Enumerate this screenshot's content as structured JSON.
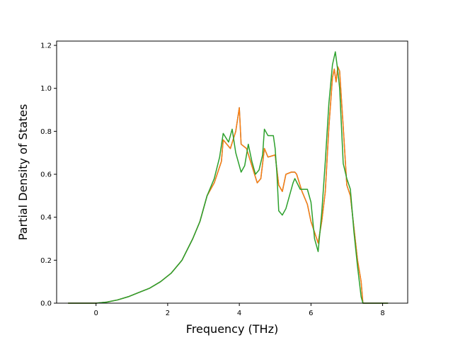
{
  "chart_data": {
    "type": "line",
    "title": "",
    "xlabel": "Frequency (THz)",
    "ylabel": "Partial Density of States",
    "xlim": [
      -1.1,
      8.7
    ],
    "ylim": [
      0.0,
      1.22
    ],
    "xticks": [
      0,
      2,
      4,
      6,
      8
    ],
    "yticks": [
      0.0,
      0.2,
      0.4,
      0.6,
      0.8,
      1.0,
      1.2
    ],
    "xtick_labels": [
      "0",
      "2",
      "4",
      "6",
      "8"
    ],
    "ytick_labels": [
      "0.0",
      "0.2",
      "0.4",
      "0.6",
      "0.8",
      "1.0",
      "1.2"
    ],
    "grid": false,
    "legend": "none",
    "series": [
      {
        "color": "#1f77b4",
        "x": [
          -0.78,
          0.0,
          0.3,
          0.6,
          0.9,
          1.2,
          1.5,
          1.8,
          2.1,
          2.4,
          2.7,
          2.9,
          3.1,
          3.3,
          3.5,
          3.55,
          3.65,
          3.75,
          3.9,
          4.0,
          4.05,
          4.2,
          4.35,
          4.5,
          4.6,
          4.7,
          4.8,
          5.0,
          5.1,
          5.2,
          5.3,
          5.45,
          5.55,
          5.6,
          5.75,
          5.9,
          6.0,
          6.1,
          6.2,
          6.3,
          6.4,
          6.5,
          6.6,
          6.65,
          6.7,
          6.75,
          6.8,
          6.9,
          7.0,
          7.1,
          7.2,
          7.3,
          7.4,
          7.45,
          7.6,
          8.15
        ],
        "y": [
          0.0,
          0.0,
          0.005,
          0.015,
          0.03,
          0.05,
          0.07,
          0.1,
          0.14,
          0.2,
          0.3,
          0.38,
          0.5,
          0.56,
          0.66,
          0.76,
          0.74,
          0.72,
          0.8,
          0.91,
          0.74,
          0.72,
          0.64,
          0.56,
          0.58,
          0.72,
          0.68,
          0.69,
          0.55,
          0.52,
          0.6,
          0.61,
          0.61,
          0.6,
          0.52,
          0.46,
          0.38,
          0.33,
          0.28,
          0.38,
          0.52,
          0.82,
          1.05,
          1.09,
          1.03,
          1.1,
          1.08,
          0.82,
          0.55,
          0.5,
          0.35,
          0.2,
          0.1,
          0.0,
          0.0,
          0.0
        ]
      },
      {
        "color": "#ff7f0e",
        "x": [
          -0.78,
          0.0,
          0.3,
          0.6,
          0.9,
          1.2,
          1.5,
          1.8,
          2.1,
          2.4,
          2.7,
          2.9,
          3.1,
          3.3,
          3.5,
          3.55,
          3.65,
          3.75,
          3.9,
          4.0,
          4.05,
          4.2,
          4.35,
          4.5,
          4.6,
          4.7,
          4.8,
          5.0,
          5.1,
          5.2,
          5.3,
          5.45,
          5.55,
          5.6,
          5.75,
          5.9,
          6.0,
          6.1,
          6.2,
          6.3,
          6.4,
          6.5,
          6.6,
          6.65,
          6.7,
          6.75,
          6.8,
          6.9,
          7.0,
          7.1,
          7.2,
          7.3,
          7.4,
          7.45,
          7.6,
          8.15
        ],
        "y": [
          0.0,
          0.0,
          0.005,
          0.015,
          0.03,
          0.05,
          0.07,
          0.1,
          0.14,
          0.2,
          0.3,
          0.38,
          0.5,
          0.56,
          0.66,
          0.76,
          0.74,
          0.72,
          0.8,
          0.91,
          0.74,
          0.72,
          0.64,
          0.56,
          0.58,
          0.72,
          0.68,
          0.69,
          0.55,
          0.52,
          0.6,
          0.61,
          0.61,
          0.6,
          0.52,
          0.46,
          0.38,
          0.33,
          0.28,
          0.38,
          0.52,
          0.82,
          1.05,
          1.09,
          1.03,
          1.1,
          1.08,
          0.82,
          0.55,
          0.5,
          0.35,
          0.2,
          0.1,
          0.0,
          0.0,
          0.0
        ]
      },
      {
        "color": "#2ca02c",
        "x": [
          -0.78,
          0.0,
          0.3,
          0.6,
          0.9,
          1.2,
          1.5,
          1.8,
          2.1,
          2.4,
          2.7,
          2.9,
          3.1,
          3.3,
          3.45,
          3.55,
          3.7,
          3.8,
          3.9,
          4.05,
          4.15,
          4.25,
          4.3,
          4.35,
          4.45,
          4.55,
          4.65,
          4.7,
          4.8,
          4.95,
          5.0,
          5.05,
          5.1,
          5.2,
          5.3,
          5.4,
          5.5,
          5.55,
          5.7,
          5.9,
          6.0,
          6.1,
          6.2,
          6.3,
          6.4,
          6.5,
          6.6,
          6.68,
          6.75,
          6.8,
          6.9,
          7.0,
          7.1,
          7.2,
          7.3,
          7.4,
          7.45,
          7.6,
          8.15
        ],
        "y": [
          0.0,
          0.0,
          0.005,
          0.015,
          0.03,
          0.05,
          0.07,
          0.1,
          0.14,
          0.2,
          0.3,
          0.38,
          0.5,
          0.58,
          0.68,
          0.79,
          0.75,
          0.81,
          0.7,
          0.61,
          0.64,
          0.74,
          0.7,
          0.66,
          0.6,
          0.62,
          0.69,
          0.81,
          0.78,
          0.78,
          0.72,
          0.6,
          0.43,
          0.41,
          0.44,
          0.5,
          0.56,
          0.58,
          0.53,
          0.53,
          0.47,
          0.3,
          0.24,
          0.42,
          0.66,
          0.93,
          1.11,
          1.17,
          1.08,
          1.0,
          0.65,
          0.58,
          0.53,
          0.33,
          0.17,
          0.03,
          0.0,
          0.0,
          0.0
        ]
      }
    ]
  }
}
